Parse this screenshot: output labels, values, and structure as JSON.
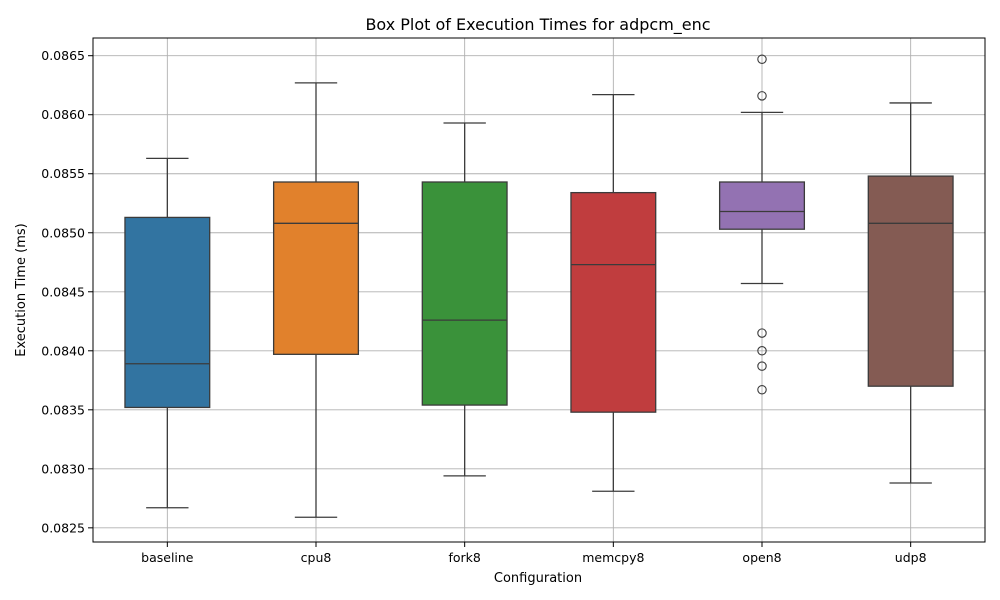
{
  "chart_data": {
    "type": "box",
    "title": "Box Plot of Execution Times for adpcm_enc",
    "xlabel": "Configuration",
    "ylabel": "Execution Time (ms)",
    "ylim": [
      0.08238,
      0.08665
    ],
    "yticks": [
      0.0825,
      0.083,
      0.0835,
      0.084,
      0.0845,
      0.085,
      0.0855,
      0.086,
      0.0865
    ],
    "ytick_labels": [
      "0.0825",
      "0.0830",
      "0.0835",
      "0.0840",
      "0.0845",
      "0.0850",
      "0.0855",
      "0.0860",
      "0.0865"
    ],
    "grid": true,
    "categories": [
      "baseline",
      "cpu8",
      "fork8",
      "memcpy8",
      "open8",
      "udp8"
    ],
    "colors": [
      "#3274a1",
      "#e1812c",
      "#3a923a",
      "#c03d3e",
      "#9372b2",
      "#845b53"
    ],
    "boxes": [
      {
        "whislo": 0.08267,
        "q1": 0.08352,
        "median": 0.08389,
        "q3": 0.08513,
        "whishi": 0.08563,
        "fliers": []
      },
      {
        "whislo": 0.08259,
        "q1": 0.08397,
        "median": 0.08508,
        "q3": 0.08543,
        "whishi": 0.08627,
        "fliers": []
      },
      {
        "whislo": 0.08294,
        "q1": 0.08354,
        "median": 0.08426,
        "q3": 0.08543,
        "whishi": 0.08593,
        "fliers": []
      },
      {
        "whislo": 0.08281,
        "q1": 0.08348,
        "median": 0.08473,
        "q3": 0.08534,
        "whishi": 0.08617,
        "fliers": []
      },
      {
        "whislo": 0.08457,
        "q1": 0.08503,
        "median": 0.08518,
        "q3": 0.08543,
        "whishi": 0.08602,
        "fliers": [
          0.08647,
          0.08616,
          0.08415,
          0.084,
          0.08387,
          0.08367
        ]
      },
      {
        "whislo": 0.08288,
        "q1": 0.0837,
        "median": 0.08508,
        "q3": 0.08548,
        "whishi": 0.0861,
        "fliers": []
      }
    ]
  }
}
